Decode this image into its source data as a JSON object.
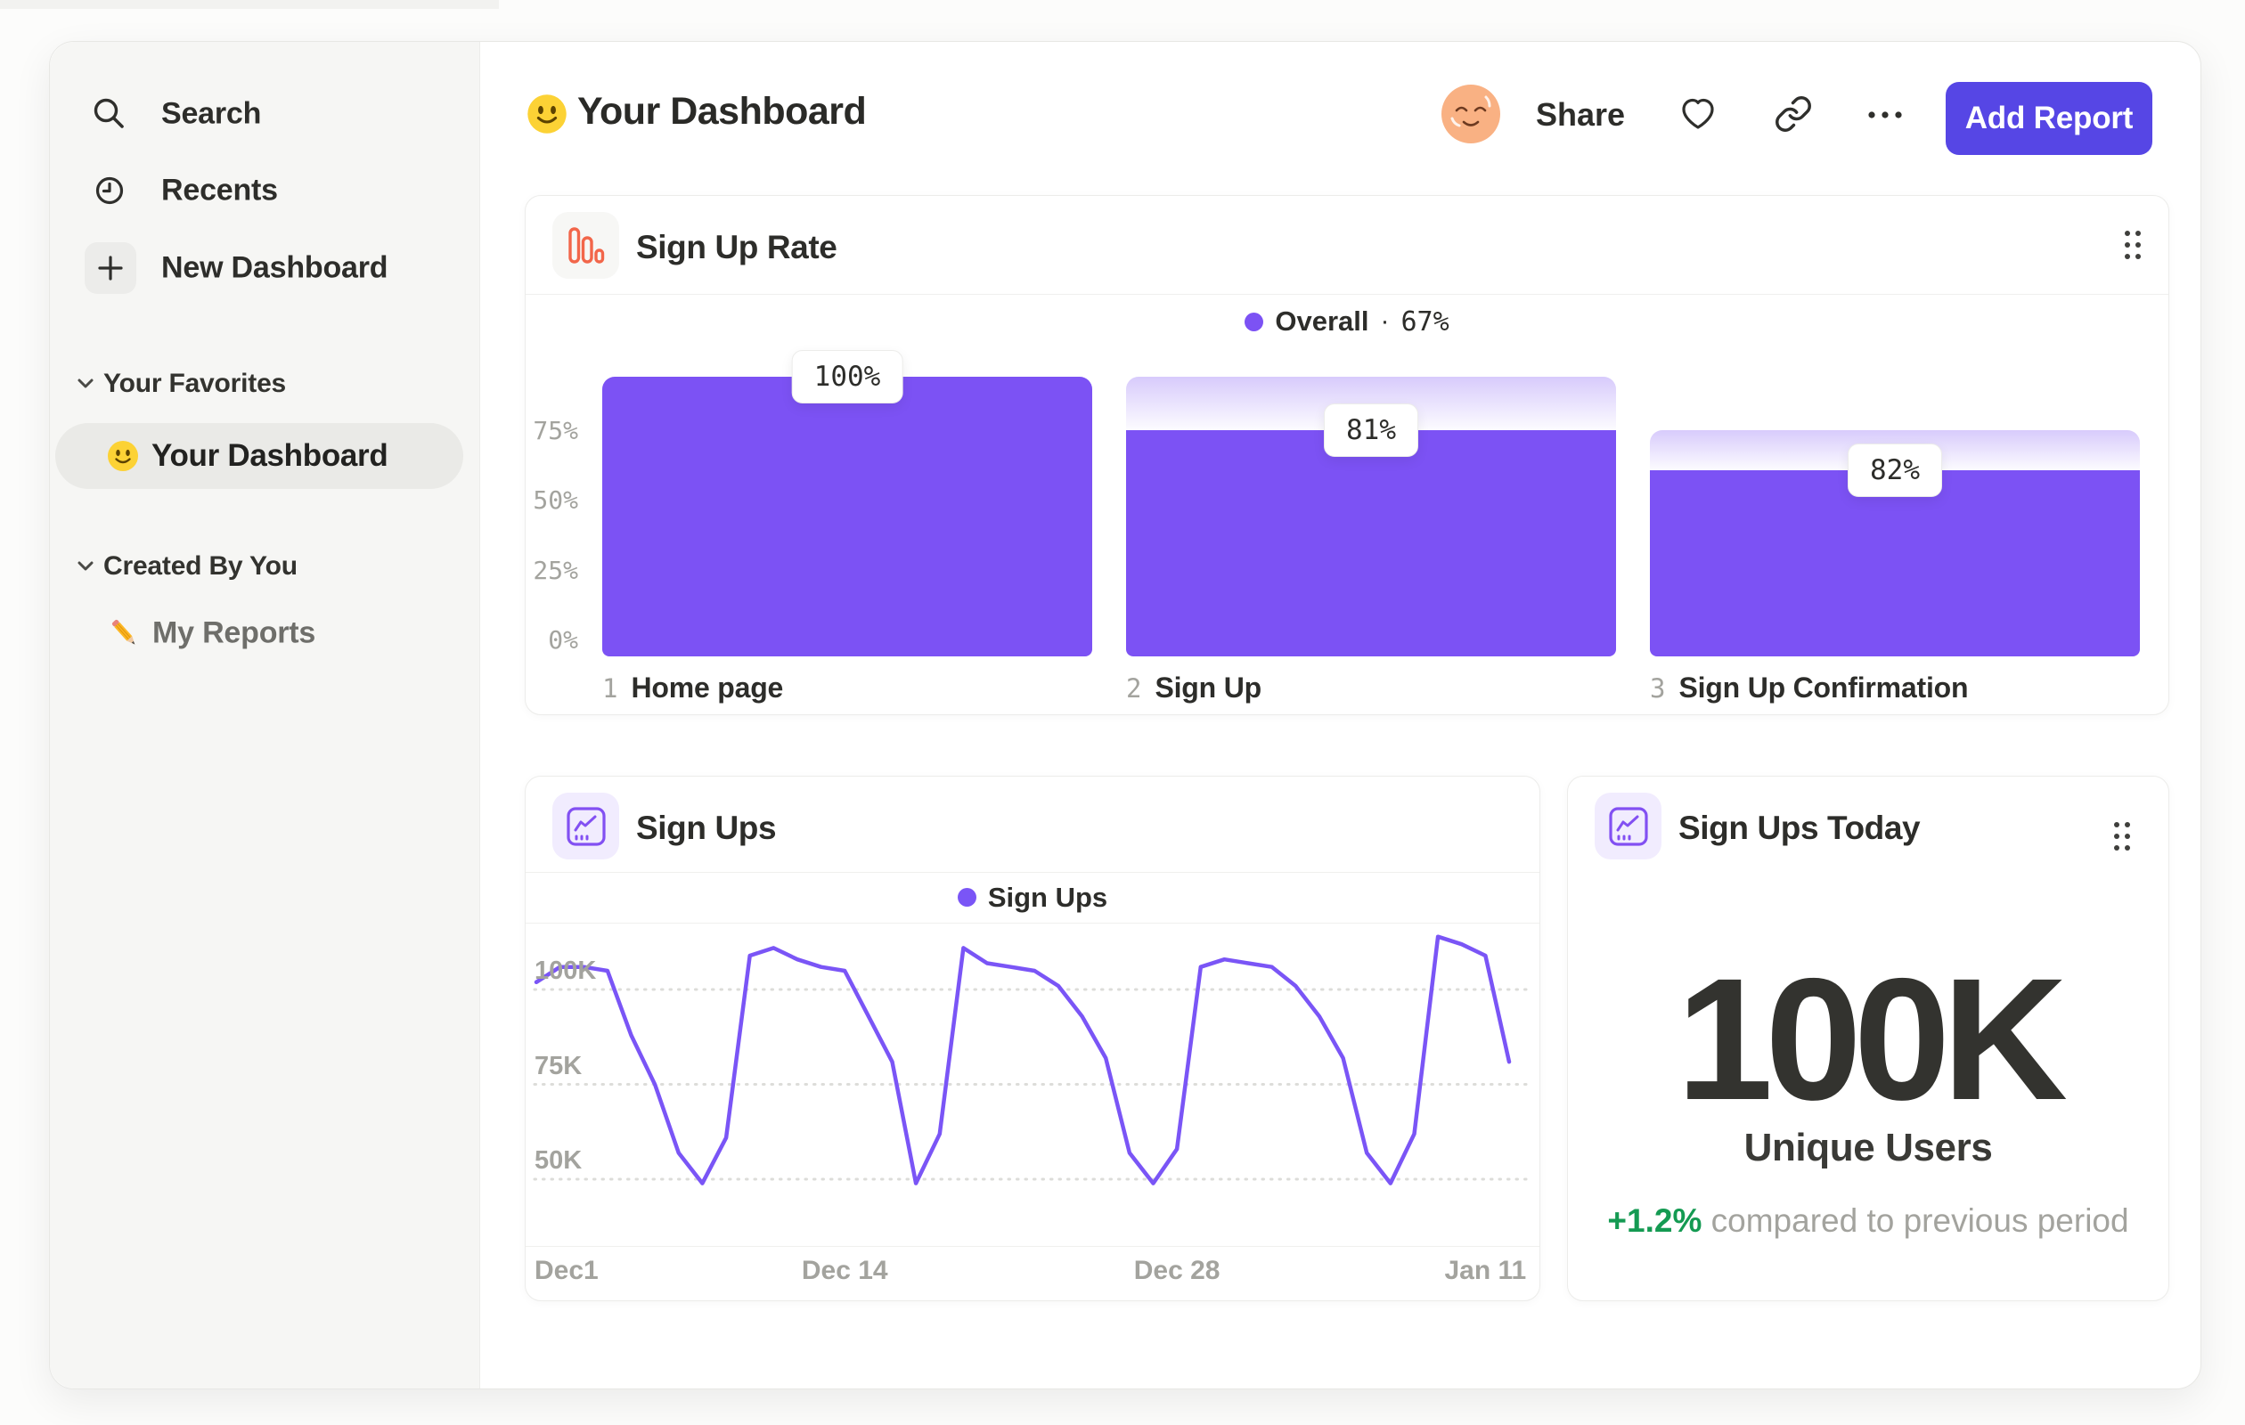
{
  "colors": {
    "accent_purple": "#7c52f4",
    "line_purple": "#7a55f6",
    "button_purple": "#5646e5",
    "icon_orange": "#f2664a",
    "icon_purple": "#8250f2",
    "green": "#149a52",
    "gray_text": "#a3a39e",
    "sidebar_bg": "#f6f6f4"
  },
  "sidebar": {
    "nav": [
      {
        "label": "Search",
        "icon": "search-icon"
      },
      {
        "label": "Recents",
        "icon": "clock-icon"
      },
      {
        "label": "New Dashboard",
        "icon": "plus-icon"
      }
    ],
    "favorites": {
      "title": "Your Favorites",
      "item": {
        "label": "Your Dashboard",
        "emoji": "smiley-face",
        "selected": true
      }
    },
    "created": {
      "title": "Created By You",
      "item": {
        "label": "My Reports",
        "emoji": "pencil"
      }
    }
  },
  "header": {
    "title": "Your Dashboard",
    "emoji": "smiley-face",
    "share": "Share",
    "add_report": "Add Report"
  },
  "chart_data": [
    {
      "type": "bar",
      "subtype": "funnel",
      "title": "Sign Up Rate",
      "legend": "Overall",
      "separator": "·",
      "overall_label": "67%",
      "overall_pct": 67,
      "categories": [
        "Home page",
        "Sign Up",
        "Sign Up Confirmation"
      ],
      "step_labels": [
        "1",
        "2",
        "3"
      ],
      "step_conversion_pct": [
        100,
        81,
        82
      ],
      "tooltips": [
        "100%",
        "81%",
        "82%"
      ],
      "y_ticks": [
        {
          "label": "75%",
          "value": 75
        },
        {
          "label": "50%",
          "value": 50
        },
        {
          "label": "25%",
          "value": 25
        },
        {
          "label": "0%",
          "value": 0
        }
      ],
      "ylim": [
        0,
        100
      ],
      "color": "#7c52f4"
    },
    {
      "type": "line",
      "title": "Sign Ups",
      "legend": "Sign Ups",
      "y_unit": "K",
      "values": [
        97,
        101,
        101,
        100,
        83,
        70,
        52,
        44,
        56,
        104,
        106,
        103,
        101,
        100,
        88,
        76,
        44,
        57,
        106,
        102,
        101,
        100,
        96,
        88,
        77,
        52,
        44,
        53,
        101,
        103,
        102,
        101,
        96,
        88,
        77,
        52,
        44,
        57,
        109,
        107,
        104,
        76
      ],
      "x_tick_labels": [
        "Dec1",
        "Dec 14",
        "Dec 28",
        "Jan 11"
      ],
      "x_tick_days": [
        0,
        13,
        27,
        40
      ],
      "y_ticks": [
        {
          "label": "100K",
          "value": 100
        },
        {
          "label": "75K",
          "value": 75
        },
        {
          "label": "50K",
          "value": 50
        }
      ],
      "ylim": [
        27,
        113
      ],
      "grid": "dotted",
      "legend_position": "top-center",
      "color": "#7a55f6"
    },
    {
      "type": "stat",
      "title": "Sign Ups Today",
      "value": "100K",
      "label": "Unique Users",
      "delta": "+1.2%",
      "note": "compared to previous period"
    }
  ]
}
